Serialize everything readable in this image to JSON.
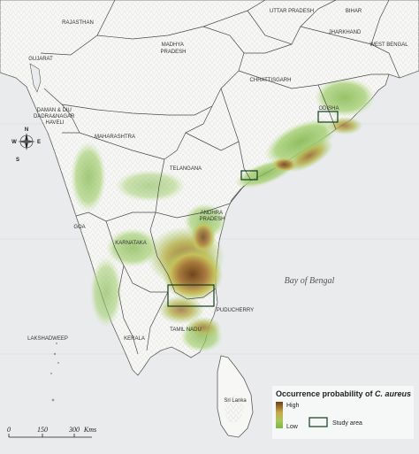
{
  "map": {
    "colors": {
      "sea": "#e9ebec",
      "land": "#f7f7f5",
      "border": "#4a4a4a",
      "low": "#8fbf4f",
      "mid": "#c8c25a",
      "high": "#7a4a1c",
      "study_box": "#0f3d1e"
    },
    "states": [
      {
        "id": "rajasthan",
        "label": "RAJASTHAN"
      },
      {
        "id": "uttar-pradesh",
        "label": "UTTAR PRADESH"
      },
      {
        "id": "bihar",
        "label": "BIHAR"
      },
      {
        "id": "jharkhand",
        "label": "JHARKHAND"
      },
      {
        "id": "west-bengal",
        "label": "WEST BENGAL"
      },
      {
        "id": "gujarat",
        "label": "GUJARAT"
      },
      {
        "id": "madhya-pradesh",
        "label": "MADHYA PRADESH"
      },
      {
        "id": "chhattisgarh",
        "label": "CHHATTISGARH"
      },
      {
        "id": "odisha",
        "label": "ODISHA"
      },
      {
        "id": "daman",
        "label": "DAMAN & DIU DADRA&NAGAR HAVELI"
      },
      {
        "id": "maharashtra",
        "label": "MAHARASHTRA"
      },
      {
        "id": "telangana",
        "label": "TELANGANA"
      },
      {
        "id": "andhra-pradesh",
        "label": "ANDHRA PRADESH"
      },
      {
        "id": "goa",
        "label": "GOA"
      },
      {
        "id": "karnataka",
        "label": "KARNATAKA"
      },
      {
        "id": "puducherry",
        "label": "PUDUCHERRY"
      },
      {
        "id": "tamil-nadu",
        "label": "TAMIL NADU"
      },
      {
        "id": "kerala",
        "label": "KERALA"
      },
      {
        "id": "lakshadweep",
        "label": "LAKSHADWEEP"
      },
      {
        "id": "sri-lanka",
        "label": "Sri Lanka"
      }
    ],
    "sea_label": "Bay of Bengal",
    "compass": {
      "n": "N",
      "s": "S",
      "e": "E",
      "w": "W"
    },
    "scale": {
      "ticks": [
        "0",
        "150",
        "300"
      ],
      "unit": "Kms"
    },
    "legend": {
      "title_prefix": "Occurrence probability of ",
      "title_species": "C. aureus",
      "high": "High",
      "low": "Low",
      "study_area": "Study area"
    }
  }
}
